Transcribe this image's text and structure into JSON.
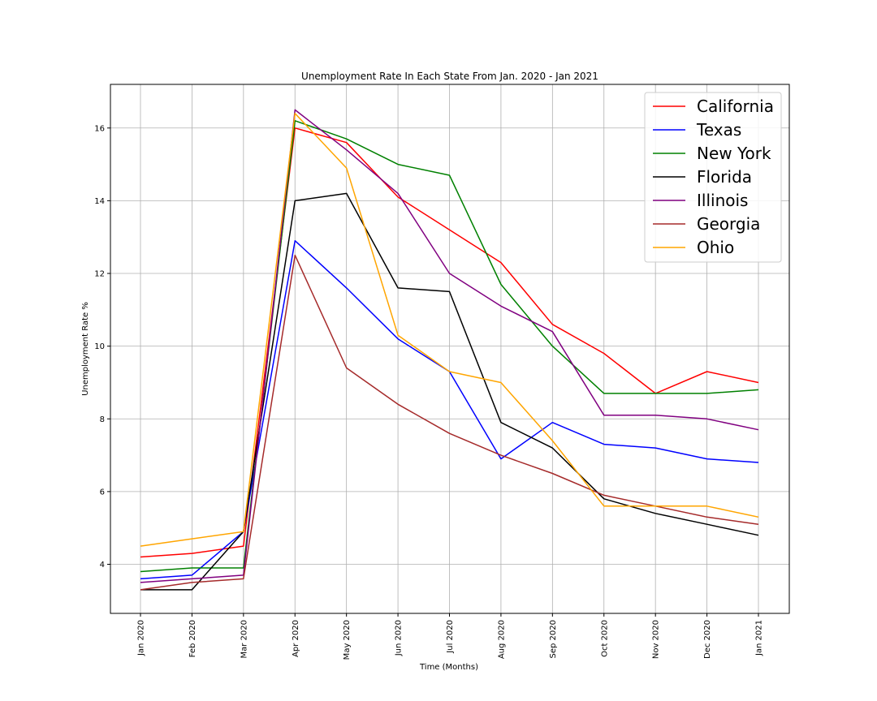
{
  "chart_data": {
    "type": "line",
    "title": "Unemployment Rate In Each State From Jan. 2020 - Jan 2021",
    "xlabel": "Time (Months)",
    "ylabel": "Unemployment Rate %",
    "categories": [
      "Jan 2020",
      "Feb 2020",
      "Mar 2020",
      "Apr 2020",
      "May 2020",
      "Jun 2020",
      "Jul 2020",
      "Aug 2020",
      "Sep 2020",
      "Oct 2020",
      "Nov 2020",
      "Dec 2020",
      "Jan 2021"
    ],
    "ylim": [
      2.65,
      17.2
    ],
    "yticks": [
      4,
      6,
      8,
      10,
      12,
      14,
      16
    ],
    "grid": true,
    "legend_position": "top-right",
    "series": [
      {
        "name": "California",
        "color": "#ff0000",
        "values": [
          4.2,
          4.3,
          4.5,
          16.0,
          15.6,
          14.1,
          13.2,
          12.3,
          10.6,
          9.8,
          8.7,
          9.3,
          9.0
        ]
      },
      {
        "name": "Texas",
        "color": "#0000ff",
        "values": [
          3.6,
          3.7,
          4.9,
          12.9,
          11.6,
          10.2,
          9.3,
          6.9,
          7.9,
          7.3,
          7.2,
          6.9,
          6.8
        ]
      },
      {
        "name": "New York",
        "color": "#008000",
        "values": [
          3.8,
          3.9,
          3.9,
          16.2,
          15.7,
          15.0,
          14.7,
          11.7,
          10.0,
          8.7,
          8.7,
          8.7,
          8.8
        ]
      },
      {
        "name": "Florida",
        "color": "#000000",
        "values": [
          3.3,
          3.3,
          4.9,
          14.0,
          14.2,
          11.6,
          11.5,
          7.9,
          7.2,
          5.8,
          5.4,
          5.1,
          4.8
        ]
      },
      {
        "name": "Illinois",
        "color": "#800080",
        "values": [
          3.5,
          3.6,
          3.7,
          16.5,
          15.4,
          14.2,
          12.0,
          11.1,
          10.4,
          8.1,
          8.1,
          8.0,
          7.7
        ]
      },
      {
        "name": "Georgia",
        "color": "#a52a2a",
        "values": [
          3.3,
          3.5,
          3.6,
          12.5,
          9.4,
          8.4,
          7.6,
          7.0,
          6.5,
          5.9,
          5.6,
          5.3,
          5.1
        ]
      },
      {
        "name": "Ohio",
        "color": "#ffa500",
        "values": [
          4.5,
          4.7,
          4.9,
          16.4,
          14.9,
          10.3,
          9.3,
          9.0,
          7.4,
          5.6,
          5.6,
          5.6,
          5.3
        ]
      }
    ]
  }
}
